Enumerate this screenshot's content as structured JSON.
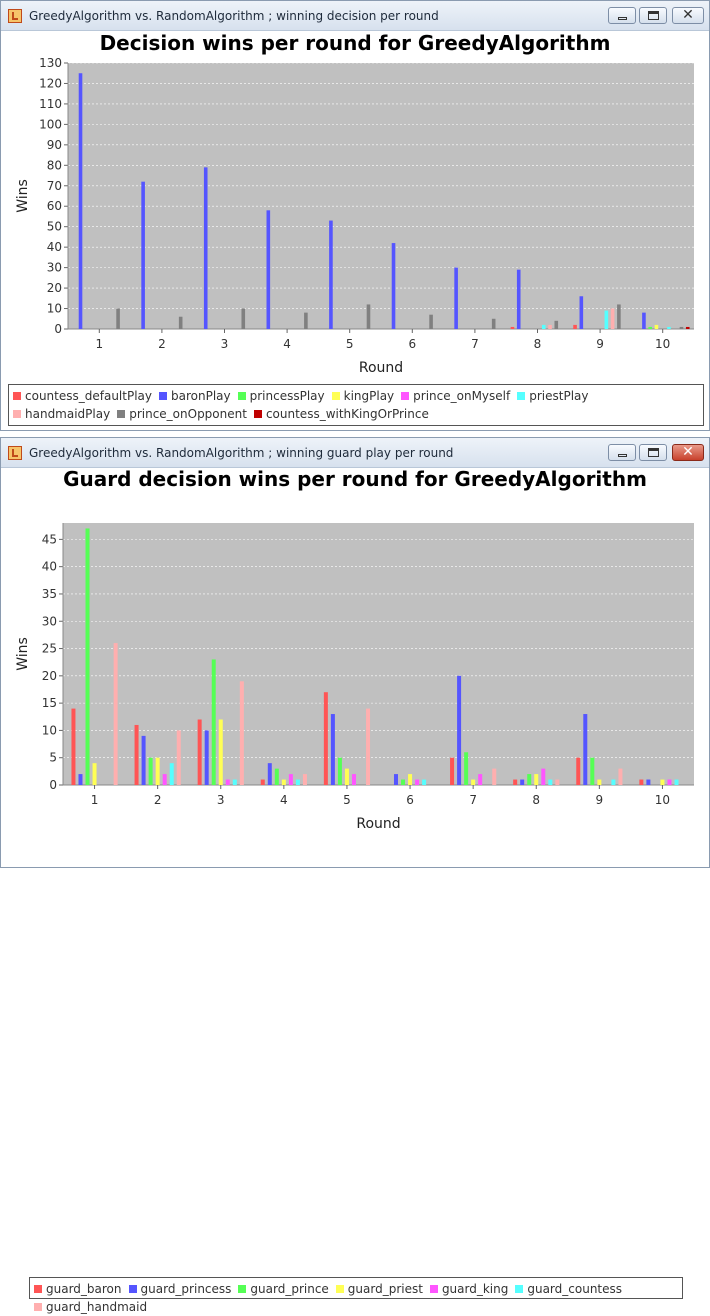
{
  "windows": [
    {
      "title": "GreedyAlgorithm vs. RandomAlgorithm ; winning decision per round"
    },
    {
      "title": "GreedyAlgorithm vs. RandomAlgorithm ; winning guard play per round"
    }
  ],
  "window_controls": {
    "close_symbol": "✕"
  },
  "chart_data": [
    {
      "type": "bar",
      "title": "Decision wins per round for GreedyAlgorithm",
      "xlabel": "Round",
      "ylabel": "Wins",
      "ylim": [
        0,
        130
      ],
      "ytick_step": 10,
      "grid": true,
      "legend_position": "bottom",
      "categories": [
        "1",
        "2",
        "3",
        "4",
        "5",
        "6",
        "7",
        "8",
        "9",
        "10"
      ],
      "series": [
        {
          "name": "countess_defaultPlay",
          "color": "#ff5555",
          "values": [
            0,
            0,
            0,
            0,
            0,
            0,
            0,
            1,
            2,
            0
          ]
        },
        {
          "name": "baronPlay",
          "color": "#5555ff",
          "values": [
            125,
            72,
            79,
            58,
            53,
            42,
            30,
            29,
            16,
            8
          ]
        },
        {
          "name": "princessPlay",
          "color": "#55ff55",
          "values": [
            0,
            0,
            0,
            0,
            0,
            0,
            0,
            0,
            0,
            1
          ]
        },
        {
          "name": "kingPlay",
          "color": "#ffff55",
          "values": [
            0,
            0,
            0,
            0,
            0,
            0,
            0,
            0,
            0,
            2
          ]
        },
        {
          "name": "prince_onMyself",
          "color": "#ff55ff",
          "values": [
            0,
            0,
            0,
            0,
            0,
            0,
            0,
            0,
            0,
            0
          ]
        },
        {
          "name": "priestPlay",
          "color": "#55ffff",
          "values": [
            0,
            0,
            0,
            0,
            0,
            0,
            0,
            2,
            9,
            1
          ]
        },
        {
          "name": "handmaidPlay",
          "color": "#ffafaf",
          "values": [
            0,
            0,
            0,
            0,
            0,
            0,
            0,
            2,
            10,
            0
          ]
        },
        {
          "name": "prince_onOpponent",
          "color": "#808080",
          "values": [
            10,
            6,
            10,
            8,
            12,
            7,
            5,
            4,
            12,
            1
          ]
        },
        {
          "name": "countess_withKingOrPrince",
          "color": "#c00000",
          "values": [
            0,
            0,
            0,
            0,
            0,
            0,
            0,
            0,
            0,
            1
          ]
        }
      ]
    },
    {
      "type": "bar",
      "title": "Guard decision wins per round for GreedyAlgorithm",
      "xlabel": "Round",
      "ylabel": "Wins",
      "ylim": [
        0,
        48
      ],
      "ytick_step": 5,
      "grid": true,
      "legend_position": "bottom",
      "categories": [
        "1",
        "2",
        "3",
        "4",
        "5",
        "6",
        "7",
        "8",
        "9",
        "10"
      ],
      "series": [
        {
          "name": "guard_baron",
          "color": "#ff5555",
          "values": [
            14,
            11,
            12,
            1,
            17,
            0,
            5,
            1,
            5,
            1
          ]
        },
        {
          "name": "guard_princess",
          "color": "#5555ff",
          "values": [
            2,
            9,
            10,
            4,
            13,
            2,
            20,
            1,
            13,
            1
          ]
        },
        {
          "name": "guard_prince",
          "color": "#55ff55",
          "values": [
            47,
            5,
            23,
            3,
            5,
            1,
            6,
            2,
            5,
            0
          ]
        },
        {
          "name": "guard_priest",
          "color": "#ffff55",
          "values": [
            4,
            5,
            12,
            1,
            3,
            2,
            1,
            2,
            1,
            1
          ]
        },
        {
          "name": "guard_king",
          "color": "#ff55ff",
          "values": [
            0,
            2,
            1,
            2,
            2,
            1,
            2,
            3,
            0,
            1
          ]
        },
        {
          "name": "guard_countess",
          "color": "#55ffff",
          "values": [
            0,
            4,
            1,
            1,
            0,
            1,
            0,
            1,
            1,
            1
          ]
        },
        {
          "name": "guard_handmaid",
          "color": "#ffafaf",
          "values": [
            26,
            10,
            19,
            2,
            14,
            0,
            3,
            1,
            3,
            0
          ]
        }
      ]
    }
  ]
}
